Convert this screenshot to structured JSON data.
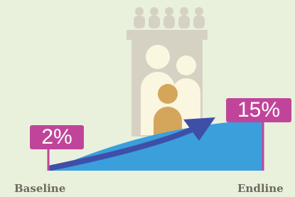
{
  "baseline": {
    "label": "Baseline",
    "value_label": "2%"
  },
  "endline": {
    "label": "Endline",
    "value_label": "15%"
  }
}
